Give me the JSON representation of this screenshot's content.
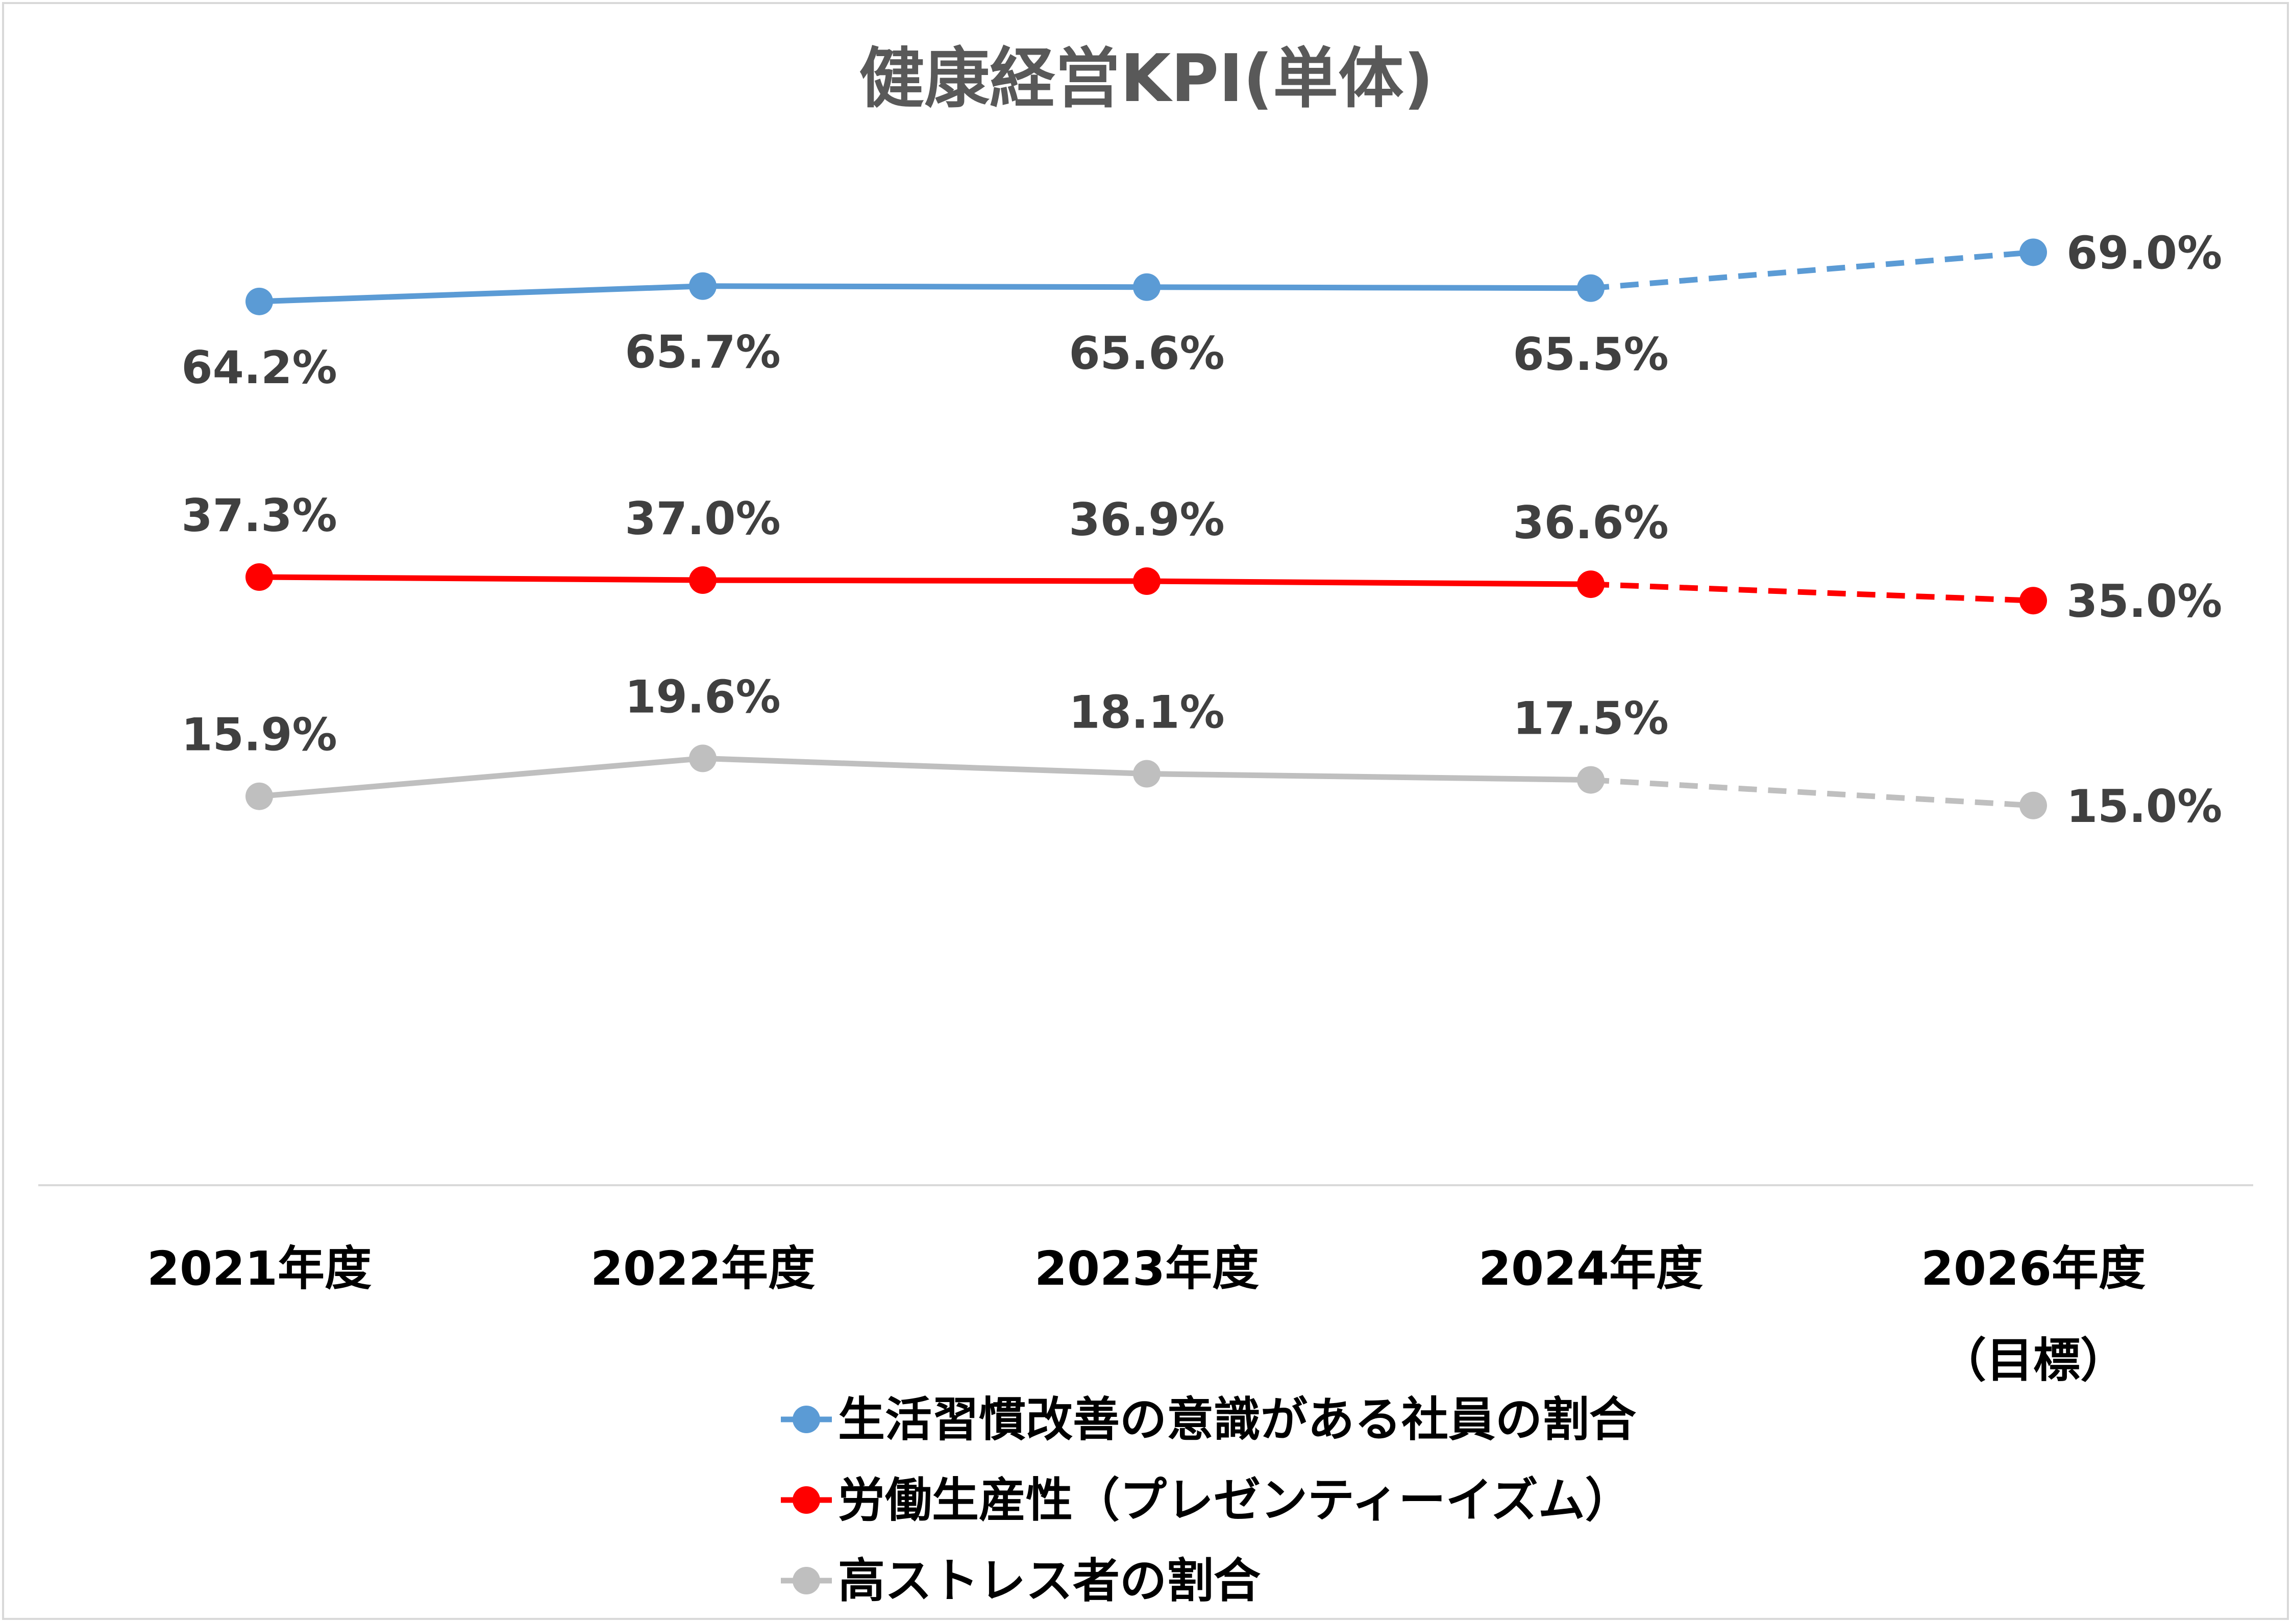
{
  "chart_data": {
    "type": "line",
    "title": "健康経営KPI(単体)",
    "categories": [
      "2021年度",
      "2022年度",
      "2023年度",
      "2024年度",
      "2026年度"
    ],
    "category_sublabels": [
      "",
      "",
      "",
      "",
      "（目標）"
    ],
    "target_index": 4,
    "ylim": [
      0,
      80
    ],
    "grid": false,
    "legend_position": "bottom",
    "series": [
      {
        "name": "生活習慣改善の意識がある社員の割合",
        "values": [
          64.2,
          65.7,
          65.6,
          65.5,
          69.0
        ],
        "labels": [
          "64.2%",
          "65.7%",
          "65.6%",
          "65.5%",
          "69.0%"
        ],
        "label_positions": [
          "below",
          "below",
          "below",
          "below",
          "right"
        ],
        "color": "#5b9bd5"
      },
      {
        "name": "労働生産性（プレゼンティーイズム）",
        "values": [
          37.3,
          37.0,
          36.9,
          36.6,
          35.0
        ],
        "labels": [
          "37.3%",
          "37.0%",
          "36.9%",
          "36.6%",
          "35.0%"
        ],
        "label_positions": [
          "above",
          "above",
          "above",
          "above",
          "right"
        ],
        "color": "#ff0000"
      },
      {
        "name": "高ストレス者の割合",
        "values": [
          15.9,
          19.6,
          18.1,
          17.5,
          15.0
        ],
        "labels": [
          "15.9%",
          "19.6%",
          "18.1%",
          "17.5%",
          "15.0%"
        ],
        "label_positions": [
          "above",
          "above",
          "above",
          "above",
          "right"
        ],
        "color": "#bfbfbf"
      }
    ]
  }
}
